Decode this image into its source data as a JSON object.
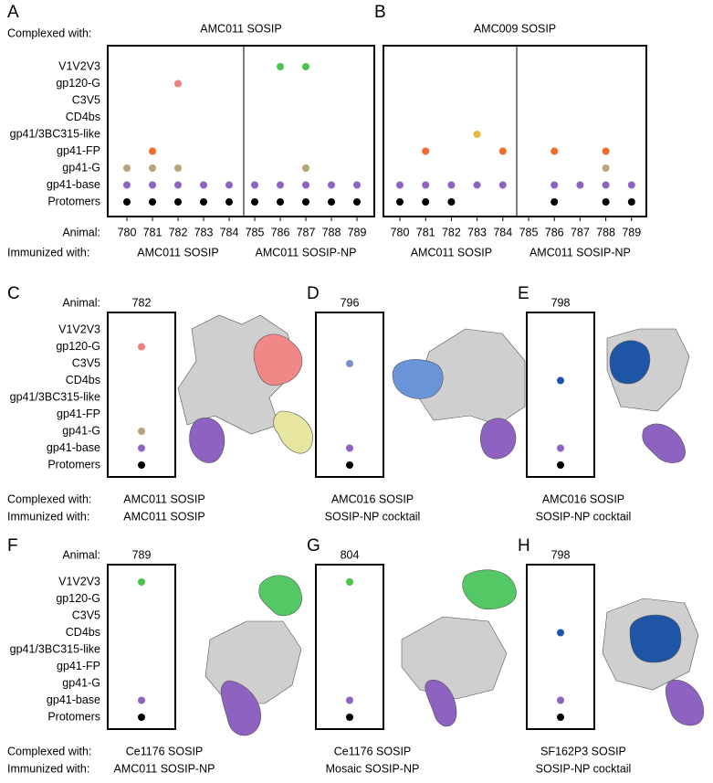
{
  "labels": {
    "complexed_with": "Complexed with:",
    "animal": "Animal:",
    "immunized_with": "Immunized with:"
  },
  "epitopes": [
    "V1V2V3",
    "gp120-G",
    "C3V5",
    "CD4bs",
    "gp41/3BC315-like",
    "gp41-FP",
    "gp41-G",
    "gp41-base",
    "Protomers"
  ],
  "top_panels": [
    {
      "letter": "A",
      "complexed_with": "AMC011 SOSIP",
      "animals": [
        780,
        781,
        782,
        783,
        784,
        785,
        786,
        787,
        788,
        789
      ],
      "immunized_with": [
        "AMC011 SOSIP",
        "AMC011 SOSIP-NP"
      ],
      "dots": [
        [
          null,
          null,
          null,
          null,
          null,
          null,
          "#4cc34c",
          "#4cc34c",
          null,
          null
        ],
        [
          null,
          null,
          "#f08080",
          null,
          null,
          null,
          null,
          null,
          null,
          null
        ],
        [
          null,
          null,
          null,
          null,
          null,
          null,
          null,
          null,
          null,
          null
        ],
        [
          null,
          null,
          null,
          null,
          null,
          null,
          null,
          null,
          null,
          null
        ],
        [
          null,
          null,
          null,
          null,
          null,
          null,
          null,
          null,
          null,
          null
        ],
        [
          null,
          "#f26b2a",
          null,
          null,
          null,
          null,
          null,
          null,
          null,
          null
        ],
        [
          "#b5a67a",
          "#b5a67a",
          "#b5a67a",
          null,
          null,
          null,
          null,
          "#b5a67a",
          null,
          null
        ],
        [
          "#8e62c0",
          "#8e62c0",
          "#8e62c0",
          "#8e62c0",
          "#8e62c0",
          "#8e62c0",
          "#8e62c0",
          "#8e62c0",
          "#8e62c0",
          "#8e62c0"
        ],
        [
          "#000000",
          "#000000",
          "#000000",
          "#000000",
          "#000000",
          "#000000",
          "#000000",
          "#000000",
          "#000000",
          "#000000"
        ]
      ]
    },
    {
      "letter": "B",
      "complexed_with": "AMC009 SOSIP",
      "animals": [
        780,
        781,
        782,
        783,
        784,
        785,
        786,
        787,
        788,
        789
      ],
      "immunized_with": [
        "AMC011 SOSIP",
        "AMC011 SOSIP-NP"
      ],
      "dots": [
        [
          null,
          null,
          null,
          null,
          null,
          null,
          null,
          null,
          null,
          null
        ],
        [
          null,
          null,
          null,
          null,
          null,
          null,
          null,
          null,
          null,
          null
        ],
        [
          null,
          null,
          null,
          null,
          null,
          null,
          null,
          null,
          null,
          null
        ],
        [
          null,
          null,
          null,
          null,
          null,
          null,
          null,
          null,
          null,
          null
        ],
        [
          null,
          null,
          null,
          "#e8b83a",
          null,
          null,
          null,
          null,
          null,
          null
        ],
        [
          null,
          "#f26b2a",
          null,
          null,
          "#f26b2a",
          null,
          "#f26b2a",
          null,
          "#f26b2a",
          null
        ],
        [
          null,
          null,
          null,
          null,
          null,
          null,
          null,
          null,
          "#b5a67a",
          null
        ],
        [
          "#8e62c0",
          "#8e62c0",
          "#8e62c0",
          "#8e62c0",
          "#8e62c0",
          null,
          "#8e62c0",
          "#8e62c0",
          "#8e62c0",
          "#8e62c0"
        ],
        [
          "#000000",
          "#000000",
          "#000000",
          null,
          null,
          null,
          "#000000",
          null,
          "#000000",
          "#000000"
        ]
      ]
    }
  ],
  "small_panels": [
    {
      "letter": "C",
      "animal": 782,
      "complexed_with": "AMC011 SOSIP",
      "immunized_with": "AMC011 SOSIP",
      "dots": [
        null,
        "#f08080",
        null,
        null,
        null,
        null,
        "#b5a67a",
        "#8e62c0",
        "#000000"
      ]
    },
    {
      "letter": "D",
      "animal": 796,
      "complexed_with": "AMC016 SOSIP",
      "immunized_with": "SOSIP-NP cocktail",
      "dots": [
        null,
        null,
        "#7b8fcf",
        null,
        null,
        null,
        null,
        "#8e62c0",
        "#000000"
      ]
    },
    {
      "letter": "E",
      "animal": 798,
      "complexed_with": "AMC016 SOSIP",
      "immunized_with": "SOSIP-NP cocktail",
      "dots": [
        null,
        null,
        null,
        "#1f55a5",
        null,
        null,
        null,
        "#8e62c0",
        "#000000"
      ]
    },
    {
      "letter": "F",
      "animal": 789,
      "complexed_with": "Ce1176 SOSIP",
      "immunized_with": "AMC011 SOSIP-NP",
      "dots": [
        "#4cc34c",
        null,
        null,
        null,
        null,
        null,
        null,
        "#8e62c0",
        "#000000"
      ]
    },
    {
      "letter": "G",
      "animal": 804,
      "complexed_with": "Ce1176 SOSIP",
      "immunized_with": "Mosaic SOSIP-NP",
      "dots": [
        "#4cc34c",
        null,
        null,
        null,
        null,
        null,
        null,
        "#8e62c0",
        "#000000"
      ]
    },
    {
      "letter": "H",
      "animal": 798,
      "complexed_with": "SF162P3 SOSIP",
      "immunized_with": "SOSIP-NP cocktail",
      "dots": [
        null,
        null,
        null,
        "#1f55a5",
        null,
        null,
        null,
        "#8e62c0",
        "#000000"
      ]
    }
  ]
}
